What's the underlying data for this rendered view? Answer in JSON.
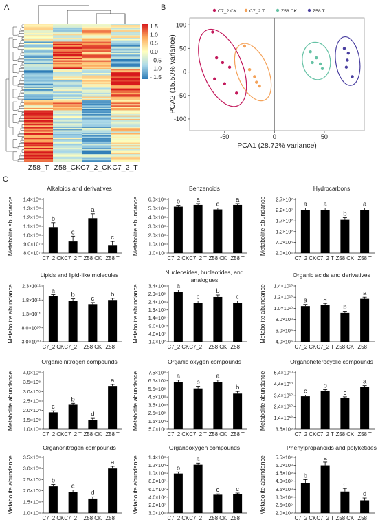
{
  "panels": {
    "a": "A",
    "b": "B",
    "c": "C"
  },
  "chart_data": [
    {
      "id": "heatmap",
      "type": "heatmap",
      "columns": [
        "Z58_T",
        "Z58_CK",
        "C7_2_CK",
        "C7_2_T"
      ],
      "colorbar": {
        "ticks": [
          "1.5",
          "1.0",
          "0.5",
          "0.0",
          "- 0.5",
          "- 1.0",
          "- 1.5"
        ],
        "colors": [
          "#d7191c",
          "#fdae61",
          "#ffffbf",
          "#abd9e9",
          "#2c7bb6"
        ]
      }
    },
    {
      "id": "pca",
      "type": "scatter",
      "xlabel": "PCA1 (28.72% variance)",
      "ylabel": "PCA2 (15.50% variance)",
      "xlim": [
        -85,
        90
      ],
      "ylim": [
        -125,
        115
      ],
      "xticks": [
        "-50",
        "0",
        "50"
      ],
      "yticks": [
        "100",
        "50",
        "0",
        "-50",
        "-100"
      ],
      "series": [
        {
          "name": "C7_2 CK",
          "color": "#c2185b",
          "points": [
            [
              -62,
              85
            ],
            [
              -58,
              30
            ],
            [
              -52,
              20
            ],
            [
              -45,
              10
            ],
            [
              -60,
              -15
            ],
            [
              -50,
              -25
            ],
            [
              -38,
              -45
            ]
          ]
        },
        {
          "name": "C7_2 T",
          "color": "#f4a259",
          "points": [
            [
              -30,
              55
            ],
            [
              -25,
              5
            ],
            [
              -20,
              -10
            ],
            [
              -18,
              -22
            ],
            [
              -15,
              -30
            ]
          ]
        },
        {
          "name": "Z58 CK",
          "color": "#66c2a5",
          "points": [
            [
              36,
              43
            ],
            [
              42,
              30
            ],
            [
              38,
              20
            ],
            [
              46,
              17
            ],
            [
              48,
              7
            ]
          ]
        },
        {
          "name": "Z58 T",
          "color": "#4a3fa0",
          "points": [
            [
              70,
              50
            ],
            [
              74,
              40
            ],
            [
              73,
              25
            ],
            [
              72,
              10
            ],
            [
              78,
              -10
            ]
          ]
        }
      ]
    },
    {
      "id": "b1",
      "type": "bar",
      "title": "Alkaloids and derivatives",
      "ylabel": "Metabolite abundance",
      "categories": [
        "C7_2 CK",
        "C7_2 T",
        "Z58 CK",
        "Z58 T"
      ],
      "values": [
        109000000.0,
        93000000.0,
        119000000.0,
        89000000.0
      ],
      "errors": [
        5000000.0,
        6000000.0,
        5000000.0,
        4000000.0
      ],
      "letters": [
        "b",
        "c",
        "a",
        "c"
      ],
      "ylim": [
        80000000.0,
        140000000.0
      ],
      "ytick_labels": [
        "1.4×10⁸",
        "1.3×10⁸",
        "1.2×10⁸",
        "1.1×10⁸",
        "1.0×10⁸",
        "9.0×10⁷",
        "8.0×10⁷"
      ]
    },
    {
      "id": "b2",
      "type": "bar",
      "title": "Benzenoids",
      "ylabel": "Metabolite abundance",
      "categories": [
        "C7_2 CK",
        "C7_2 T",
        "Z58 CK",
        "Z58 T"
      ],
      "values": [
        520000000.0,
        540000000.0,
        490000000.0,
        540000000.0
      ],
      "errors": [
        15000000.0,
        15000000.0,
        15000000.0,
        15000000.0
      ],
      "letters": [
        "b",
        "a",
        "c",
        "a"
      ],
      "ylim": [
        10000000.0,
        600000000.0
      ],
      "ytick_labels": [
        "6.0×10⁸",
        "5.0×10⁸",
        "4.0×10⁸",
        "3.0×10⁸",
        "2.0×10⁸",
        "1.0×10⁸",
        "1.0×10⁷"
      ]
    },
    {
      "id": "b3",
      "type": "bar",
      "title": "Hydrocarbons",
      "ylabel": "Metabolite abundance",
      "categories": [
        "C7_2 CK",
        "C7_2 T",
        "Z58 CK",
        "Z58 T"
      ],
      "values": [
        22000000.0,
        22000000.0,
        17500000.0,
        22000000.0
      ],
      "errors": [
        1000000.0,
        1000000.0,
        1000000.0,
        1000000.0
      ],
      "letters": [
        "a",
        "a",
        "b",
        "a"
      ],
      "ylim": [
        2000000.0,
        27000000.0
      ],
      "ytick_labels": [
        "2.7×10⁷",
        "2.2×10⁷",
        "1.7×10⁷",
        "1.2×10⁷",
        "7.0×10⁶",
        "2.0×10⁶"
      ]
    },
    {
      "id": "b4",
      "type": "bar",
      "title": "Lipids and lipid-like molecules",
      "ylabel": "Metabolite abundance",
      "categories": [
        "C7_2 CK",
        "C7_2 T",
        "Z58 CK",
        "Z58 T"
      ],
      "values": [
        193000000000.0,
        178000000000.0,
        165000000000.0,
        180000000000.0
      ],
      "errors": [
        6000000000.0,
        6000000000.0,
        6000000000.0,
        6000000000.0
      ],
      "letters": [
        "a",
        "b",
        "c",
        "b"
      ],
      "ylim": [
        30000000000.0,
        230000000000.0
      ],
      "ytick_labels": [
        "2.3×10¹¹",
        "1.8×10¹¹",
        "1.3×10¹¹",
        "8.0×10¹⁰",
        "3.0×10¹⁰"
      ]
    },
    {
      "id": "b5",
      "type": "bar",
      "title": "Nucleosides, bucleotides, and analogues",
      "ylabel": "Metabolite abundance",
      "categories": [
        "C7_2 CK",
        "C7_2 T",
        "Z58 CK",
        "Z58 T"
      ],
      "values": [
        305000000.0,
        240000000.0,
        275000000.0,
        240000000.0
      ],
      "errors": [
        12000000.0,
        12000000.0,
        12000000.0,
        12000000.0
      ],
      "letters": [
        "a",
        "c",
        "b",
        "c"
      ],
      "ylim": [
        10000000.0,
        340000000.0
      ],
      "ytick_labels": [
        "3.4×10⁸",
        "2.9×10⁸",
        "2.4×10⁸",
        "1.9×10⁸",
        "1.4×10⁸",
        "9.0×10⁷",
        "4.0×10⁷",
        "1.0×10⁷"
      ]
    },
    {
      "id": "b6",
      "type": "bar",
      "title": "Organic acids and derivatives",
      "ylabel": "Metabolite abundance",
      "categories": [
        "C7_2 CK",
        "C7_2 T",
        "Z58 CK",
        "Z58 T"
      ],
      "values": [
        10400000000.0,
        10600000000.0,
        9200000000.0,
        11700000000.0
      ],
      "errors": [
        300000000.0,
        300000000.0,
        300000000.0,
        300000000.0
      ],
      "letters": [
        "a",
        "a",
        "b",
        "a"
      ],
      "ylim": [
        4000000000.0,
        14000000000.0
      ],
      "ytick_labels": [
        "1.4×10¹⁰",
        "1.2×10¹⁰",
        "1.0×10¹⁰",
        "8.0×10⁹",
        "6.0×10⁹",
        "4.0×10⁹"
      ]
    },
    {
      "id": "b7",
      "type": "bar",
      "title": "Organic nitrogen compounds",
      "ylabel": "Metabolite abundance",
      "categories": [
        "C7_2 CK",
        "C7_2 T",
        "Z58 CK",
        "Z58 T"
      ],
      "values": [
        190000000.0,
        230000000.0,
        150000000.0,
        330000000.0
      ],
      "errors": [
        8000000.0,
        8000000.0,
        8000000.0,
        8000000.0
      ],
      "letters": [
        "c",
        "b",
        "d",
        "a"
      ],
      "ylim": [
        100000000.0,
        400000000.0
      ],
      "ytick_labels": [
        "4.0×10⁸",
        "3.5×10⁸",
        "3.0×10⁸",
        "2.5×10⁸",
        "2.0×10⁸",
        "1.5×10⁸",
        "1.0×10⁸"
      ]
    },
    {
      "id": "b8",
      "type": "bar",
      "title": "Organic oxygen compounds",
      "ylabel": "Metabolite abundance",
      "categories": [
        "C7_2 CK",
        "C7_2 T",
        "Z58 CK",
        "Z58 T"
      ],
      "values": [
        640000000.0,
        570000000.0,
        640000000.0,
        510000000.0
      ],
      "errors": [
        25000000.0,
        25000000.0,
        25000000.0,
        25000000.0
      ],
      "letters": [
        "a",
        "b",
        "a",
        "b"
      ],
      "ylim": [
        100000000.0,
        750000000.0
      ],
      "ytick_labels": [
        "7.5×10⁸",
        "6.5×10⁸",
        "5.5×10⁸",
        "4.5×10⁸",
        "3.5×10⁸",
        "2.5×10⁸",
        "1.5×10⁸",
        "5.0×10⁷"
      ]
    },
    {
      "id": "b9",
      "type": "bar",
      "title": "Organoheterocyclic compounds",
      "ylabel": "Metabolite abundance",
      "categories": [
        "C7_2 CK",
        "C7_2 T",
        "Z58 CK",
        "Z58 T"
      ],
      "values": [
        33000000000.0,
        38000000000.0,
        31500000000.0,
        41500000000.0
      ],
      "errors": [
        1000000000.0,
        1000000000.0,
        1000000000.0,
        1000000000.0
      ],
      "letters": [
        "c",
        "b",
        "c",
        "a"
      ],
      "ylim": [
        3500000000.0,
        54000000000.0
      ],
      "ytick_labels": [
        "5.4×10¹⁰",
        "4.4×10¹⁰",
        "3.4×10¹⁰",
        "2.4×10¹⁰",
        "1.4×10¹⁰",
        "3.5×10⁹"
      ]
    },
    {
      "id": "b10",
      "type": "bar",
      "title": "Organonitrogen compounds",
      "ylabel": "Metabolite abundance",
      "categories": [
        "C7_2 CK",
        "C7_2 T",
        "Z58 CK",
        "Z58 T"
      ],
      "values": [
        220000000.0,
        195000000.0,
        165000000.0,
        300000000.0
      ],
      "errors": [
        8000000.0,
        8000000.0,
        8000000.0,
        10000000.0
      ],
      "letters": [
        "b",
        "c",
        "d",
        "a"
      ],
      "ylim": [
        100000000.0,
        350000000.0
      ],
      "ytick_labels": [
        "3.5×10⁸",
        "3.0×10⁸",
        "2.5×10⁸",
        "2.0×10⁸",
        "1.5×10⁸",
        "1.0×10⁸"
      ]
    },
    {
      "id": "b11",
      "type": "bar",
      "title": "Organooxygen compounds",
      "ylabel": "Metabolite abundance",
      "categories": [
        "C7_2 CK",
        "C7_2 T",
        "Z58 CK",
        "Z58 T"
      ],
      "values": [
        100000000.0,
        122000000.0,
        48000000.0,
        50000000.0
      ],
      "errors": [
        4000000.0,
        4000000.0,
        2000000.0,
        2000000.0
      ],
      "letters": [
        "b",
        "a",
        "c",
        "c"
      ],
      "ylim": [
        3000000.0,
        140000000.0
      ],
      "ytick_labels": [
        "1.4×10⁸",
        "1.2×10⁸",
        "1.0×10⁸",
        "8.0×10⁷",
        "6.0×10⁷",
        "4.0×10⁷",
        "2.0×10⁷",
        "3.0×10⁶"
      ]
    },
    {
      "id": "b12",
      "type": "bar",
      "title": "Phenylpropanoids and polyketides",
      "ylabel": "Metabolite abundance",
      "categories": [
        "C7_2 CK",
        "C7_2 T",
        "Z58 CK",
        "Z58 T"
      ],
      "values": [
        3900000000.0,
        5000000000.0,
        3350000000.0,
        2800000000.0
      ],
      "errors": [
        200000000.0,
        200000000.0,
        200000000.0,
        150000000.0
      ],
      "letters": [
        "b",
        "a",
        "c",
        "d"
      ],
      "ylim": [
        2000000000.0,
        5500000000.0
      ],
      "ytick_labels": [
        "5.5×10⁹",
        "5.0×10⁹",
        "4.5×10⁹",
        "4.0×10⁹",
        "3.5×10⁹",
        "3.0×10⁹",
        "2.5×10⁹",
        "2.0×10⁹"
      ]
    }
  ]
}
